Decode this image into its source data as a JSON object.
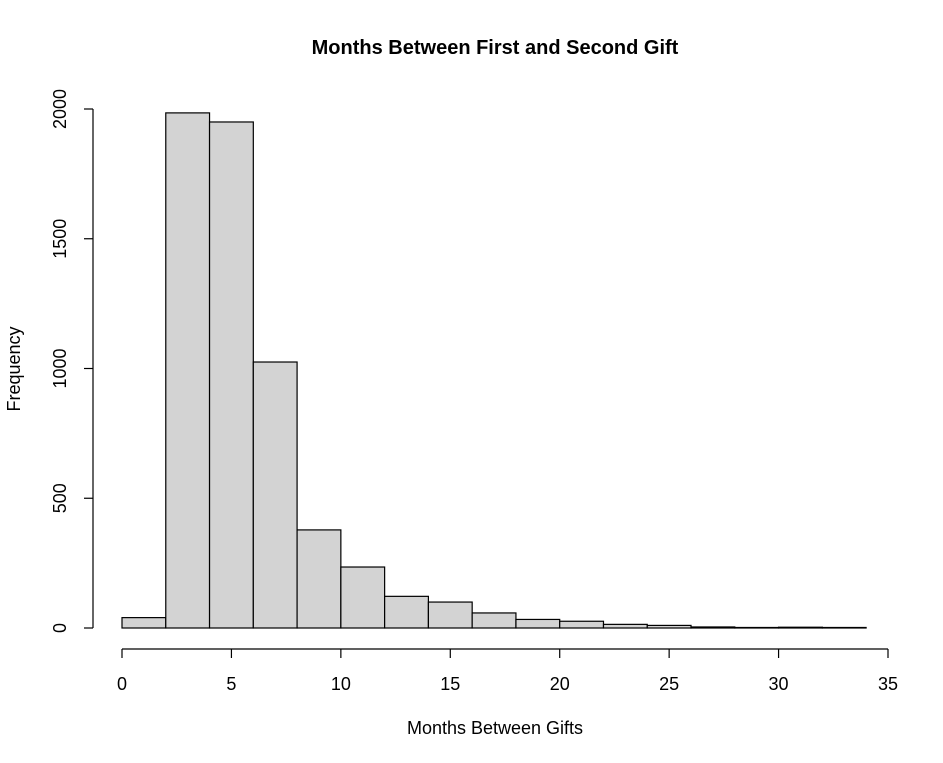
{
  "chart_data": {
    "type": "bar",
    "title": "Months Between First and Second Gift",
    "xlabel": "Months Between Gifts",
    "ylabel": "Frequency",
    "bin_edges": [
      0,
      2,
      4,
      6,
      8,
      10,
      12,
      14,
      16,
      18,
      20,
      22,
      24,
      26,
      28,
      30,
      32,
      34
    ],
    "values": [
      40,
      1985,
      1950,
      1025,
      378,
      235,
      122,
      100,
      58,
      33,
      26,
      14,
      10,
      4,
      2,
      3,
      2
    ],
    "xlim": [
      0,
      35
    ],
    "ylim": [
      0,
      2000
    ],
    "x_ticks": [
      "0",
      "5",
      "10",
      "15",
      "20",
      "25",
      "30",
      "35"
    ],
    "y_ticks": [
      "0",
      "500",
      "1000",
      "1500",
      "2000"
    ],
    "bar_fill": "#d3d3d3",
    "bar_stroke": "#000000",
    "grid": false,
    "legend": "none"
  }
}
